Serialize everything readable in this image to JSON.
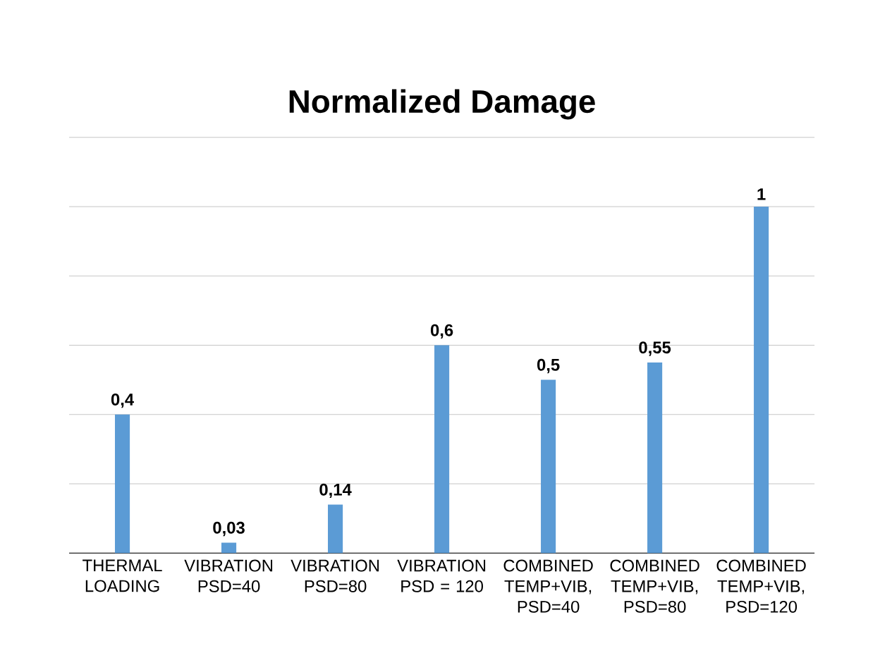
{
  "chart_data": {
    "type": "bar",
    "title": "Normalized Damage",
    "categories": [
      "THERMAL LOADING",
      "VIBRATION PSD=40",
      "VIBRATION PSD=80",
      "VIBRATION PSD = 120",
      "COMBINED TEMP+VIB, PSD=40",
      "COMBINED TEMP+VIB, PSD=80",
      "COMBINED TEMP+VIB, PSD=120"
    ],
    "values": [
      0.4,
      0.03,
      0.14,
      0.6,
      0.5,
      0.55,
      1
    ],
    "value_labels": [
      "0,4",
      "0,03",
      "0,14",
      "0,6",
      "0,5",
      "0,55",
      "1"
    ],
    "color": "#5b9bd5",
    "ylim": [
      0,
      1.2
    ],
    "grid": "y",
    "tick_labels": "x"
  }
}
